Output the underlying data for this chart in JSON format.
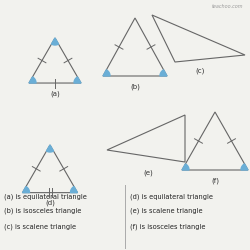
{
  "bg_color": "#f2f2ee",
  "line_color": "#666666",
  "fill_color": "#6aaed6",
  "watermark": "teachoo.com",
  "descriptions_left": [
    "(a) is equilateral triangle",
    "(b) is isosceles triangle",
    "(c) is scalene triangle"
  ],
  "descriptions_right": [
    "(d) is equilateral triangle",
    "(e) is scalene triangle",
    "(f) is isosceles triangle"
  ],
  "labels": [
    "(a)",
    "(b)",
    "(c)",
    "(d)",
    "(e)",
    "(f)"
  ]
}
